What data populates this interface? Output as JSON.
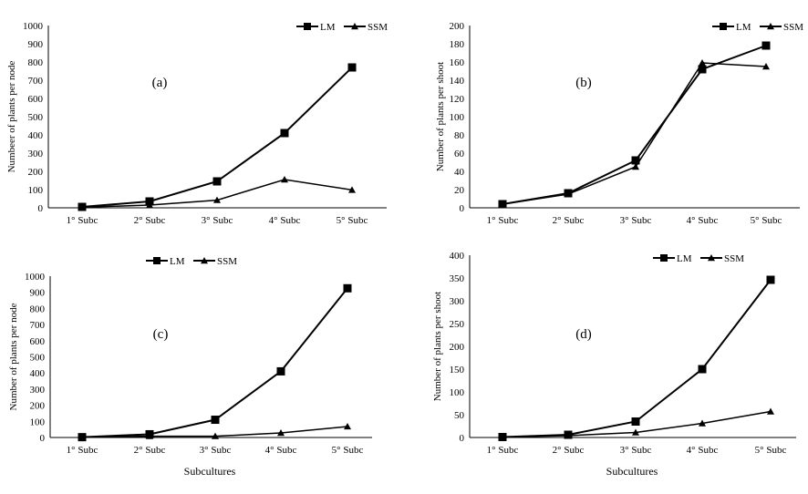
{
  "chart_data": [
    {
      "type": "line",
      "panel_label": "(a)",
      "categories": [
        "1° Subc",
        "2° Subc",
        "3° Subc",
        "4° Subc",
        "5° Subc"
      ],
      "ylabel": "Numbeer of plants per node",
      "xlabel": "",
      "ylim": [
        0,
        1000
      ],
      "yticks": [
        0,
        100,
        200,
        300,
        400,
        500,
        600,
        700,
        800,
        900,
        1000
      ],
      "grid": false,
      "legend": "top-right",
      "series": [
        {
          "name": "LM",
          "marker": "square",
          "values": [
            5,
            35,
            145,
            410,
            770
          ]
        },
        {
          "name": "SSM",
          "marker": "triangle",
          "values": [
            3,
            15,
            42,
            155,
            98
          ]
        }
      ]
    },
    {
      "type": "line",
      "panel_label": "(b)",
      "categories": [
        "1° Subc",
        "2° Subc",
        "3° Subc",
        "4° Subc",
        "5° Subc"
      ],
      "ylabel": "Number of plants per shoot",
      "xlabel": "",
      "ylim": [
        0,
        200
      ],
      "yticks": [
        0,
        20,
        40,
        60,
        80,
        100,
        120,
        140,
        160,
        180,
        200
      ],
      "grid": false,
      "legend": "top-right",
      "series": [
        {
          "name": "LM",
          "marker": "square",
          "values": [
            4,
            16,
            52,
            152,
            178
          ]
        },
        {
          "name": "SSM",
          "marker": "triangle",
          "values": [
            4,
            15,
            45,
            159,
            155
          ]
        }
      ]
    },
    {
      "type": "line",
      "panel_label": "(c)",
      "categories": [
        "1° Subc",
        "2° Subc",
        "3° Subc",
        "4° Subc",
        "5° Subc"
      ],
      "ylabel": "Number of plants per node",
      "xlabel": "Subcultures",
      "ylim": [
        0,
        1000
      ],
      "yticks": [
        0,
        100,
        200,
        300,
        400,
        500,
        600,
        700,
        800,
        900,
        1000
      ],
      "grid": false,
      "legend": "top",
      "series": [
        {
          "name": "LM",
          "marker": "square",
          "values": [
            2,
            20,
            110,
            410,
            925
          ]
        },
        {
          "name": "SSM",
          "marker": "triangle",
          "values": [
            2,
            8,
            8,
            28,
            68
          ]
        }
      ]
    },
    {
      "type": "line",
      "panel_label": "(d)",
      "categories": [
        "1° Subc",
        "2° Subc",
        "3° Subc",
        "4° Subc",
        "5° Subc"
      ],
      "ylabel": "Number of plants per shoot",
      "xlabel": "Subcultures",
      "ylim": [
        0,
        400
      ],
      "yticks": [
        0,
        50,
        100,
        150,
        200,
        250,
        300,
        350,
        400
      ],
      "grid": false,
      "legend": "top-right",
      "series": [
        {
          "name": "LM",
          "marker": "square",
          "values": [
            1,
            6,
            35,
            150,
            346
          ]
        },
        {
          "name": "SSM",
          "marker": "triangle",
          "values": [
            1,
            4,
            11,
            31,
            57
          ]
        }
      ]
    }
  ]
}
